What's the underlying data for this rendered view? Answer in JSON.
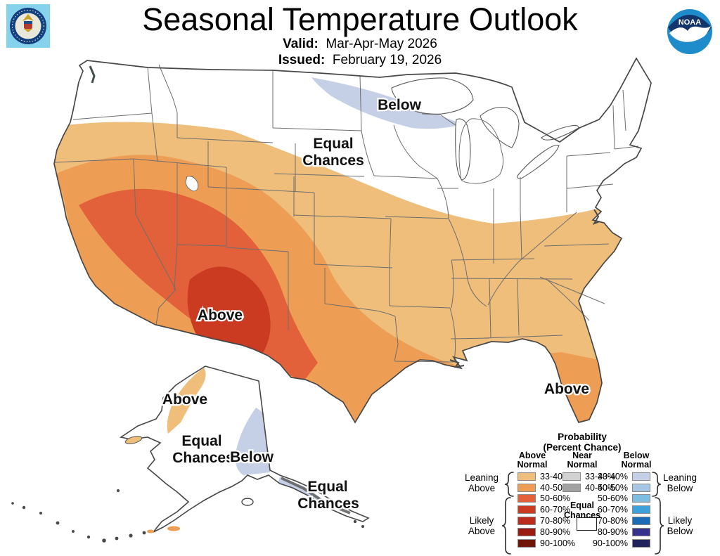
{
  "header": {
    "title": "Seasonal Temperature Outlook",
    "valid_label": "Valid:",
    "valid_value": "Mar-Apr-May 2026",
    "issued_label": "Issued:",
    "issued_value": "February 19, 2026"
  },
  "logos": {
    "noaa_text": "NOAA"
  },
  "map": {
    "labels": {
      "north_below": "Below",
      "central_equal_1": "Equal",
      "central_equal_2": "Chances",
      "west_above": "Above",
      "florida_above": "Above",
      "ak_above": "Above",
      "ak_equal_1": "Equal",
      "ak_equal_2": "Chances",
      "ak_below": "Below",
      "ak_se_equal_1": "Equal",
      "ak_se_equal_2": "Chances"
    }
  },
  "colors": {
    "above1": "#EFBE7B",
    "above2": "#EE9D54",
    "above3": "#E2613B",
    "above4": "#CA3B22",
    "below1": "#C5CFE6",
    "equal": "#FFFFFF",
    "coast": "#474747",
    "state_line": "#6E6E6E"
  },
  "legend": {
    "title_line1": "Probability",
    "title_line2": "(Percent Chance)",
    "above_header1": "Above",
    "above_header2": "Normal",
    "near_header1": "Near",
    "near_header2": "Normal",
    "below_header1": "Below",
    "below_header2": "Normal",
    "leaning_above1": "Leaning",
    "leaning_above2": "Above",
    "likely_above1": "Likely",
    "likely_above2": "Above",
    "leaning_below1": "Leaning",
    "leaning_below2": "Below",
    "likely_below1": "Likely",
    "likely_below2": "Below",
    "equal_1": "Equal",
    "equal_2": "Chances",
    "above_rows": [
      {
        "range": "33-40%",
        "color": "#EFBE7B"
      },
      {
        "range": "40-50%",
        "color": "#EE9D54"
      },
      {
        "range": "50-60%",
        "color": "#E2613B"
      },
      {
        "range": "60-70%",
        "color": "#CA3B22"
      },
      {
        "range": "70-80%",
        "color": "#BB2D1D"
      },
      {
        "range": "80-90%",
        "color": "#9C1B10"
      },
      {
        "range": "90-100%",
        "color": "#6E1507"
      }
    ],
    "near_rows": [
      {
        "range": "33-40%",
        "color": "#D2D2D2"
      },
      {
        "range": "40-50%",
        "color": "#A2A2A2"
      }
    ],
    "below_rows": [
      {
        "range": "33-40%",
        "color": "#C5CFE6"
      },
      {
        "range": "40-50%",
        "color": "#A6C7E3"
      },
      {
        "range": "50-60%",
        "color": "#7FBCE1"
      },
      {
        "range": "60-70%",
        "color": "#3FA0DA"
      },
      {
        "range": "70-80%",
        "color": "#1A6DB5"
      },
      {
        "range": "80-90%",
        "color": "#37338C"
      },
      {
        "range": "90-100%",
        "color": "#21215C"
      }
    ]
  }
}
